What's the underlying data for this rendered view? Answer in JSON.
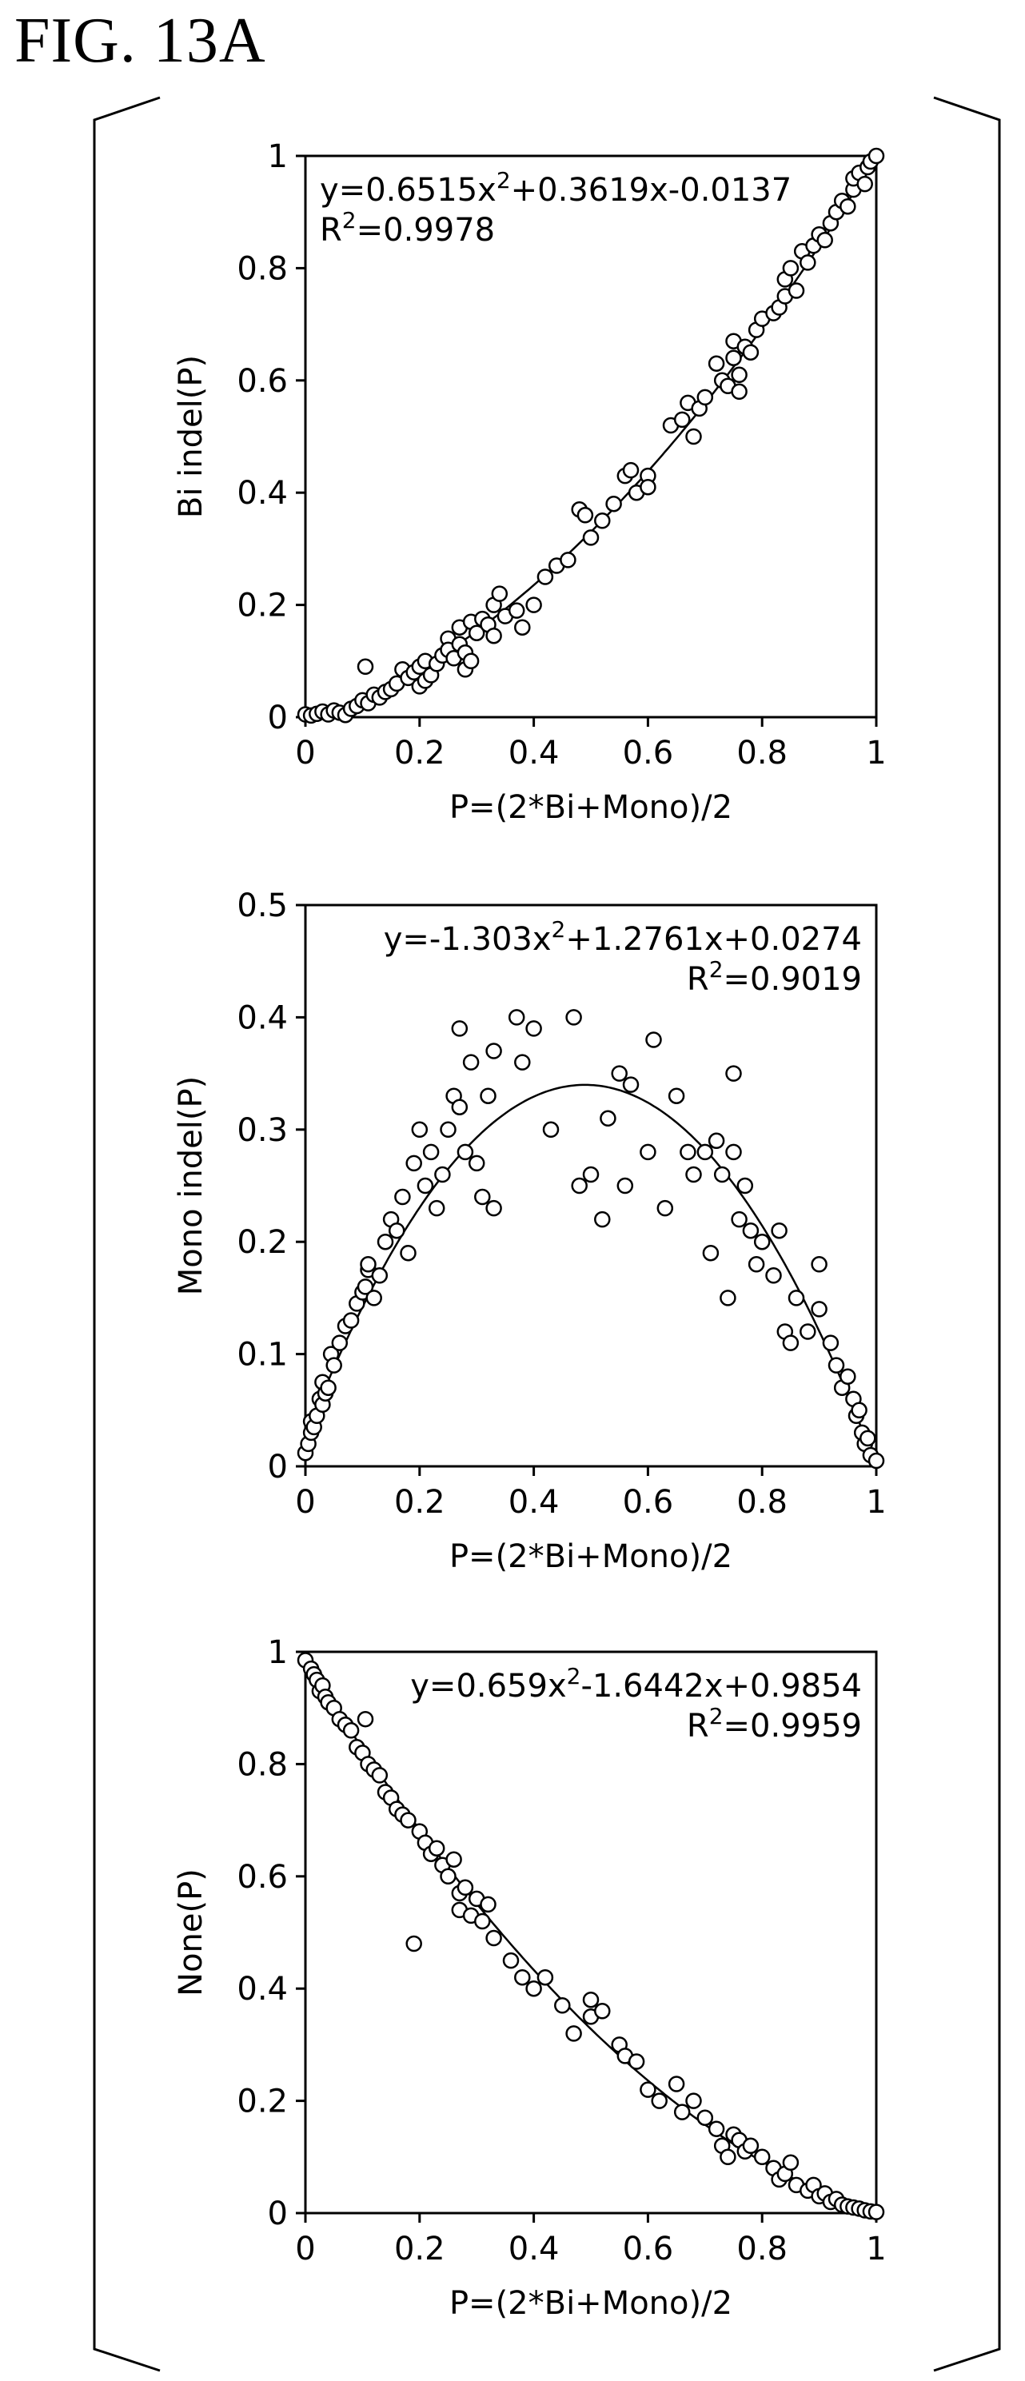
{
  "figure_title": "FIG. 13A",
  "chart_data": [
    {
      "type": "scatter",
      "xlabel": "P=(2*Bi+Mono)/2",
      "ylabel": "Bi indel(P)",
      "xlim": [
        0,
        1
      ],
      "ylim": [
        0,
        1
      ],
      "xticks": [
        "0",
        "0.2",
        "0.4",
        "0.6",
        "0.8",
        "1"
      ],
      "yticks": [
        "0",
        "0.2",
        "0.4",
        "0.6",
        "0.8",
        "1"
      ],
      "equation": "y=0.6515x²+0.3619x-0.0137",
      "r2": "R²=0.9978",
      "annotation_align": "left",
      "fit": [
        0.6515,
        0.3619,
        -0.0137
      ],
      "points": [
        [
          0,
          0.005
        ],
        [
          0.01,
          0.003
        ],
        [
          0.02,
          0.006
        ],
        [
          0.03,
          0.01
        ],
        [
          0.04,
          0.005
        ],
        [
          0.05,
          0.012
        ],
        [
          0.06,
          0.008
        ],
        [
          0.07,
          0.004
        ],
        [
          0.08,
          0.015
        ],
        [
          0.09,
          0.02
        ],
        [
          0.1,
          0.03
        ],
        [
          0.105,
          0.09
        ],
        [
          0.11,
          0.025
        ],
        [
          0.12,
          0.04
        ],
        [
          0.13,
          0.035
        ],
        [
          0.14,
          0.045
        ],
        [
          0.15,
          0.05
        ],
        [
          0.16,
          0.06
        ],
        [
          0.17,
          0.085
        ],
        [
          0.18,
          0.07
        ],
        [
          0.19,
          0.08
        ],
        [
          0.2,
          0.09
        ],
        [
          0.2,
          0.055
        ],
        [
          0.21,
          0.1
        ],
        [
          0.21,
          0.065
        ],
        [
          0.22,
          0.075
        ],
        [
          0.23,
          0.095
        ],
        [
          0.24,
          0.11
        ],
        [
          0.25,
          0.14
        ],
        [
          0.25,
          0.12
        ],
        [
          0.26,
          0.105
        ],
        [
          0.27,
          0.13
        ],
        [
          0.27,
          0.16
        ],
        [
          0.28,
          0.085
        ],
        [
          0.28,
          0.115
        ],
        [
          0.29,
          0.17
        ],
        [
          0.29,
          0.1
        ],
        [
          0.3,
          0.15
        ],
        [
          0.31,
          0.175
        ],
        [
          0.32,
          0.165
        ],
        [
          0.33,
          0.2
        ],
        [
          0.33,
          0.145
        ],
        [
          0.34,
          0.22
        ],
        [
          0.35,
          0.18
        ],
        [
          0.37,
          0.19
        ],
        [
          0.38,
          0.16
        ],
        [
          0.4,
          0.2
        ],
        [
          0.42,
          0.25
        ],
        [
          0.44,
          0.27
        ],
        [
          0.46,
          0.28
        ],
        [
          0.48,
          0.37
        ],
        [
          0.49,
          0.36
        ],
        [
          0.5,
          0.32
        ],
        [
          0.52,
          0.35
        ],
        [
          0.54,
          0.38
        ],
        [
          0.56,
          0.43
        ],
        [
          0.57,
          0.44
        ],
        [
          0.58,
          0.4
        ],
        [
          0.6,
          0.43
        ],
        [
          0.6,
          0.41
        ],
        [
          0.64,
          0.52
        ],
        [
          0.66,
          0.53
        ],
        [
          0.67,
          0.56
        ],
        [
          0.68,
          0.5
        ],
        [
          0.69,
          0.55
        ],
        [
          0.7,
          0.57
        ],
        [
          0.72,
          0.63
        ],
        [
          0.73,
          0.6
        ],
        [
          0.74,
          0.59
        ],
        [
          0.75,
          0.67
        ],
        [
          0.75,
          0.64
        ],
        [
          0.76,
          0.58
        ],
        [
          0.76,
          0.61
        ],
        [
          0.77,
          0.66
        ],
        [
          0.78,
          0.65
        ],
        [
          0.79,
          0.69
        ],
        [
          0.8,
          0.71
        ],
        [
          0.82,
          0.72
        ],
        [
          0.83,
          0.73
        ],
        [
          0.84,
          0.75
        ],
        [
          0.84,
          0.78
        ],
        [
          0.85,
          0.8
        ],
        [
          0.86,
          0.76
        ],
        [
          0.87,
          0.83
        ],
        [
          0.88,
          0.81
        ],
        [
          0.89,
          0.84
        ],
        [
          0.9,
          0.86
        ],
        [
          0.91,
          0.85
        ],
        [
          0.92,
          0.88
        ],
        [
          0.93,
          0.9
        ],
        [
          0.94,
          0.92
        ],
        [
          0.95,
          0.91
        ],
        [
          0.96,
          0.94
        ],
        [
          0.96,
          0.96
        ],
        [
          0.97,
          0.97
        ],
        [
          0.98,
          0.95
        ],
        [
          0.985,
          0.98
        ],
        [
          0.99,
          0.99
        ],
        [
          1,
          1
        ]
      ]
    },
    {
      "type": "scatter",
      "xlabel": "P=(2*Bi+Mono)/2",
      "ylabel": "Mono indel(P)",
      "xlim": [
        0,
        1
      ],
      "ylim": [
        0,
        0.5
      ],
      "xticks": [
        "0",
        "0.2",
        "0.4",
        "0.6",
        "0.8",
        "1"
      ],
      "yticks": [
        "0",
        "0.1",
        "0.2",
        "0.3",
        "0.4",
        "0.5"
      ],
      "equation": "y=-1.303x²+1.2761x+0.0274",
      "r2": "R²=0.9019",
      "annotation_align": "right",
      "fit": [
        -1.303,
        1.2761,
        0.0274
      ],
      "points": [
        [
          0,
          0.012
        ],
        [
          0.005,
          0.02
        ],
        [
          0.01,
          0.03
        ],
        [
          0.01,
          0.04
        ],
        [
          0.015,
          0.035
        ],
        [
          0.02,
          0.045
        ],
        [
          0.025,
          0.06
        ],
        [
          0.03,
          0.055
        ],
        [
          0.03,
          0.075
        ],
        [
          0.035,
          0.065
        ],
        [
          0.04,
          0.07
        ],
        [
          0.045,
          0.1
        ],
        [
          0.05,
          0.09
        ],
        [
          0.06,
          0.11
        ],
        [
          0.07,
          0.125
        ],
        [
          0.08,
          0.13
        ],
        [
          0.09,
          0.145
        ],
        [
          0.1,
          0.155
        ],
        [
          0.105,
          0.16
        ],
        [
          0.11,
          0.175
        ],
        [
          0.11,
          0.18
        ],
        [
          0.12,
          0.15
        ],
        [
          0.13,
          0.17
        ],
        [
          0.14,
          0.2
        ],
        [
          0.15,
          0.22
        ],
        [
          0.16,
          0.21
        ],
        [
          0.17,
          0.24
        ],
        [
          0.18,
          0.19
        ],
        [
          0.19,
          0.27
        ],
        [
          0.2,
          0.3
        ],
        [
          0.21,
          0.25
        ],
        [
          0.22,
          0.28
        ],
        [
          0.23,
          0.23
        ],
        [
          0.24,
          0.26
        ],
        [
          0.25,
          0.3
        ],
        [
          0.26,
          0.33
        ],
        [
          0.27,
          0.39
        ],
        [
          0.27,
          0.32
        ],
        [
          0.28,
          0.28
        ],
        [
          0.29,
          0.36
        ],
        [
          0.3,
          0.27
        ],
        [
          0.31,
          0.24
        ],
        [
          0.32,
          0.33
        ],
        [
          0.33,
          0.37
        ],
        [
          0.33,
          0.23
        ],
        [
          0.37,
          0.4
        ],
        [
          0.38,
          0.36
        ],
        [
          0.4,
          0.39
        ],
        [
          0.43,
          0.3
        ],
        [
          0.47,
          0.4
        ],
        [
          0.48,
          0.25
        ],
        [
          0.5,
          0.26
        ],
        [
          0.52,
          0.22
        ],
        [
          0.53,
          0.31
        ],
        [
          0.55,
          0.35
        ],
        [
          0.56,
          0.25
        ],
        [
          0.57,
          0.34
        ],
        [
          0.6,
          0.28
        ],
        [
          0.61,
          0.38
        ],
        [
          0.63,
          0.23
        ],
        [
          0.65,
          0.33
        ],
        [
          0.67,
          0.28
        ],
        [
          0.68,
          0.26
        ],
        [
          0.7,
          0.28
        ],
        [
          0.71,
          0.19
        ],
        [
          0.72,
          0.29
        ],
        [
          0.73,
          0.26
        ],
        [
          0.74,
          0.15
        ],
        [
          0.75,
          0.28
        ],
        [
          0.75,
          0.35
        ],
        [
          0.76,
          0.22
        ],
        [
          0.77,
          0.25
        ],
        [
          0.78,
          0.21
        ],
        [
          0.79,
          0.18
        ],
        [
          0.8,
          0.2
        ],
        [
          0.82,
          0.17
        ],
        [
          0.83,
          0.21
        ],
        [
          0.84,
          0.12
        ],
        [
          0.85,
          0.11
        ],
        [
          0.86,
          0.15
        ],
        [
          0.88,
          0.12
        ],
        [
          0.9,
          0.18
        ],
        [
          0.9,
          0.14
        ],
        [
          0.92,
          0.11
        ],
        [
          0.93,
          0.09
        ],
        [
          0.94,
          0.07
        ],
        [
          0.95,
          0.08
        ],
        [
          0.96,
          0.06
        ],
        [
          0.965,
          0.045
        ],
        [
          0.97,
          0.05
        ],
        [
          0.975,
          0.03
        ],
        [
          0.98,
          0.02
        ],
        [
          0.985,
          0.025
        ],
        [
          0.99,
          0.01
        ],
        [
          1,
          0.005
        ]
      ]
    },
    {
      "type": "scatter",
      "xlabel": "P=(2*Bi+Mono)/2",
      "ylabel": "None(P)",
      "xlim": [
        0,
        1
      ],
      "ylim": [
        0,
        1
      ],
      "xticks": [
        "0",
        "0.2",
        "0.4",
        "0.6",
        "0.8",
        "1"
      ],
      "yticks": [
        "0",
        "0.2",
        "0.4",
        "0.6",
        "0.8",
        "1"
      ],
      "equation": "y=0.659x²-1.6442x+0.9854",
      "r2": "R²=0.9959",
      "annotation_align": "right",
      "fit": [
        0.659,
        -1.6442,
        0.9854
      ],
      "points": [
        [
          0,
          0.985
        ],
        [
          0.01,
          0.97
        ],
        [
          0.015,
          0.96
        ],
        [
          0.02,
          0.95
        ],
        [
          0.025,
          0.93
        ],
        [
          0.03,
          0.94
        ],
        [
          0.035,
          0.92
        ],
        [
          0.04,
          0.91
        ],
        [
          0.05,
          0.9
        ],
        [
          0.06,
          0.88
        ],
        [
          0.07,
          0.87
        ],
        [
          0.08,
          0.86
        ],
        [
          0.09,
          0.83
        ],
        [
          0.1,
          0.82
        ],
        [
          0.105,
          0.88
        ],
        [
          0.11,
          0.8
        ],
        [
          0.12,
          0.79
        ],
        [
          0.13,
          0.78
        ],
        [
          0.14,
          0.75
        ],
        [
          0.15,
          0.74
        ],
        [
          0.16,
          0.72
        ],
        [
          0.17,
          0.71
        ],
        [
          0.18,
          0.7
        ],
        [
          0.19,
          0.48
        ],
        [
          0.2,
          0.68
        ],
        [
          0.21,
          0.66
        ],
        [
          0.22,
          0.64
        ],
        [
          0.23,
          0.65
        ],
        [
          0.24,
          0.62
        ],
        [
          0.25,
          0.6
        ],
        [
          0.26,
          0.63
        ],
        [
          0.27,
          0.57
        ],
        [
          0.27,
          0.54
        ],
        [
          0.28,
          0.58
        ],
        [
          0.29,
          0.53
        ],
        [
          0.3,
          0.56
        ],
        [
          0.31,
          0.52
        ],
        [
          0.32,
          0.55
        ],
        [
          0.33,
          0.49
        ],
        [
          0.36,
          0.45
        ],
        [
          0.38,
          0.42
        ],
        [
          0.4,
          0.4
        ],
        [
          0.42,
          0.42
        ],
        [
          0.45,
          0.37
        ],
        [
          0.47,
          0.32
        ],
        [
          0.5,
          0.38
        ],
        [
          0.5,
          0.35
        ],
        [
          0.52,
          0.36
        ],
        [
          0.55,
          0.3
        ],
        [
          0.56,
          0.28
        ],
        [
          0.58,
          0.27
        ],
        [
          0.6,
          0.22
        ],
        [
          0.62,
          0.2
        ],
        [
          0.65,
          0.23
        ],
        [
          0.66,
          0.18
        ],
        [
          0.68,
          0.2
        ],
        [
          0.7,
          0.17
        ],
        [
          0.72,
          0.15
        ],
        [
          0.73,
          0.12
        ],
        [
          0.74,
          0.1
        ],
        [
          0.75,
          0.14
        ],
        [
          0.76,
          0.13
        ],
        [
          0.77,
          0.11
        ],
        [
          0.78,
          0.12
        ],
        [
          0.8,
          0.1
        ],
        [
          0.82,
          0.08
        ],
        [
          0.83,
          0.06
        ],
        [
          0.84,
          0.07
        ],
        [
          0.85,
          0.09
        ],
        [
          0.86,
          0.05
        ],
        [
          0.88,
          0.04
        ],
        [
          0.89,
          0.05
        ],
        [
          0.9,
          0.03
        ],
        [
          0.91,
          0.035
        ],
        [
          0.92,
          0.02
        ],
        [
          0.93,
          0.025
        ],
        [
          0.94,
          0.015
        ],
        [
          0.95,
          0.012
        ],
        [
          0.96,
          0.01
        ],
        [
          0.97,
          0.008
        ],
        [
          0.98,
          0.005
        ],
        [
          0.99,
          0.003
        ],
        [
          1,
          0.002
        ]
      ]
    }
  ]
}
